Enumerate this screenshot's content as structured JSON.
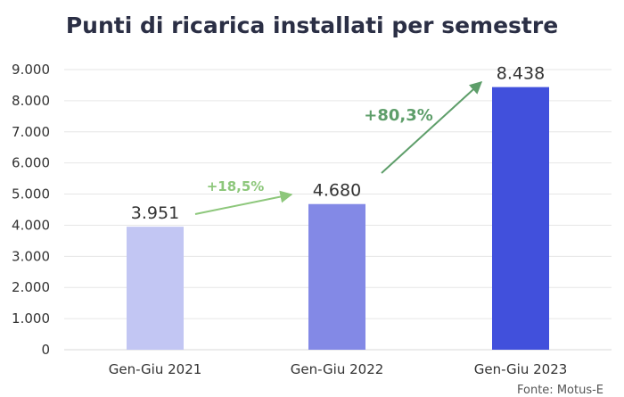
{
  "chart_data": {
    "type": "bar",
    "title": "Punti di ricarica installati per semestre",
    "categories": [
      "Gen-Giu 2021",
      "Gen-Giu 2022",
      "Gen-Giu 2023"
    ],
    "values": [
      3951,
      4680,
      8438
    ],
    "value_labels": [
      "3.951",
      "4.680",
      "8.438"
    ],
    "bar_colors": [
      "#c2c6f3",
      "#8389e6",
      "#4150dc"
    ],
    "ylim": [
      0,
      9000
    ],
    "yticks": [
      0,
      1000,
      2000,
      3000,
      4000,
      5000,
      6000,
      7000,
      8000,
      9000
    ],
    "ytick_labels": [
      "0",
      "1.000",
      "2.000",
      "3.000",
      "4.000",
      "5.000",
      "6.000",
      "7.000",
      "8.000",
      "9.000"
    ],
    "grid": true,
    "xlabel": "",
    "ylabel": "",
    "annotations": [
      {
        "text": "+18,5%",
        "color": "#8dc77b",
        "from_category": 0,
        "to_category": 1
      },
      {
        "text": "+80,3%",
        "color": "#5e9e6a",
        "from_category": 1,
        "to_category": 2
      }
    ],
    "source": "Fonte: Motus-E"
  }
}
